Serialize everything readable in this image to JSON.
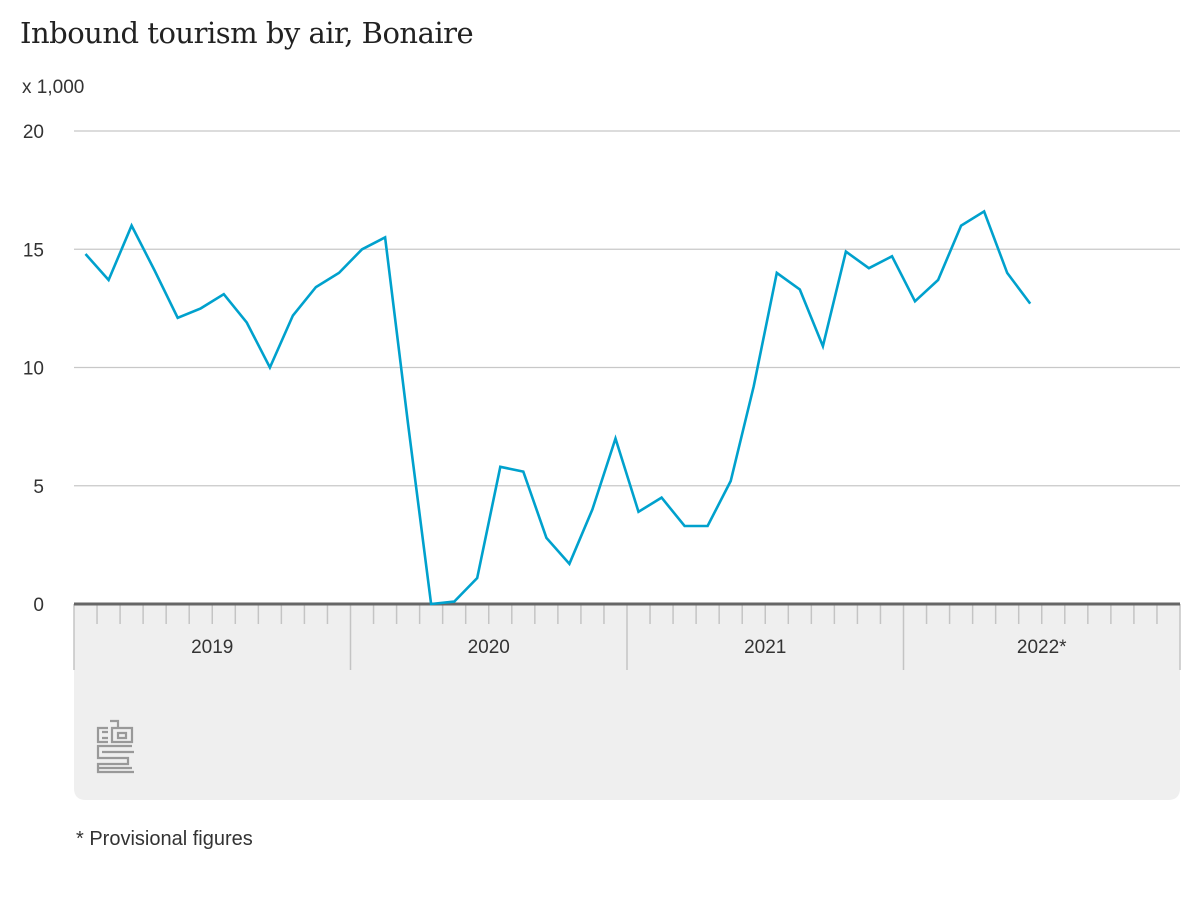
{
  "chart_data": {
    "type": "line",
    "title": "Inbound tourism by air, Bonaire",
    "ylabel": "x 1,000",
    "xlabel": "",
    "ylim": [
      0,
      20
    ],
    "yticks": [
      0,
      5,
      10,
      15,
      20
    ],
    "grid": true,
    "x_groups": [
      "2019",
      "2020",
      "2021",
      "2022*"
    ],
    "months_per_group": 12,
    "series": [
      {
        "name": "Inbound tourism by air",
        "color": "#00a1cd",
        "start": "2019-01",
        "values": [
          14.8,
          13.7,
          16.0,
          14.1,
          12.1,
          12.5,
          13.1,
          11.9,
          10.0,
          12.2,
          13.4,
          14.0,
          15.0,
          15.5,
          7.6,
          0.0,
          0.1,
          1.1,
          5.8,
          5.6,
          2.8,
          1.7,
          4.0,
          7.0,
          3.9,
          4.5,
          3.3,
          3.3,
          5.2,
          9.2,
          14.0,
          13.3,
          10.9,
          14.9,
          14.2,
          14.7,
          12.8,
          13.7,
          16.0,
          16.6,
          14.0,
          12.7
        ]
      }
    ],
    "footnote": "* Provisional figures"
  },
  "logo_text": "cbs"
}
